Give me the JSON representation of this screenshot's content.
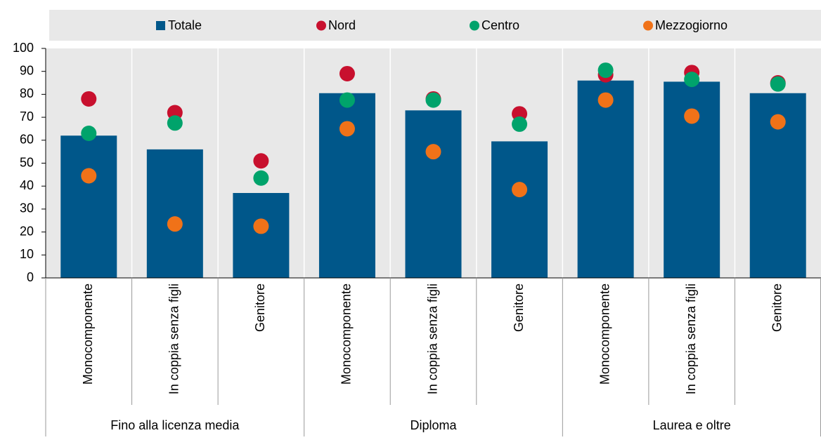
{
  "chart_data": {
    "type": "bar",
    "groups": [
      {
        "name": "Fino alla licenza media",
        "categories": [
          "Monocomponente",
          "In coppia senza figli",
          "Genitore"
        ]
      },
      {
        "name": "Diploma",
        "categories": [
          "Monocomponente",
          "In coppia senza figli",
          "Genitore"
        ]
      },
      {
        "name": "Laurea e oltre",
        "categories": [
          "Monocomponente",
          "In coppia senza figli",
          "Genitore"
        ]
      }
    ],
    "series": [
      {
        "name": "Totale",
        "type": "bar",
        "color": "#00578a",
        "values": [
          62,
          56,
          37,
          80.5,
          73,
          59.5,
          86,
          85.5,
          80.5
        ]
      },
      {
        "name": "Nord",
        "type": "scatter",
        "color": "#c8102e",
        "values": [
          78,
          72,
          51,
          89,
          78,
          71.5,
          88.5,
          89.5,
          85
        ]
      },
      {
        "name": "Centro",
        "type": "scatter",
        "color": "#00a36b",
        "values": [
          63,
          67.5,
          43.5,
          77.5,
          77.5,
          67,
          90.5,
          86.5,
          84.5
        ]
      },
      {
        "name": "Mezzogiorno",
        "type": "scatter",
        "color": "#f07218",
        "values": [
          44.5,
          23.5,
          22.5,
          65,
          55,
          38.5,
          77.5,
          70.5,
          68
        ]
      }
    ],
    "ylim": [
      0,
      100
    ],
    "yticks": [
      0,
      10,
      20,
      30,
      40,
      50,
      60,
      70,
      80,
      90,
      100
    ]
  }
}
